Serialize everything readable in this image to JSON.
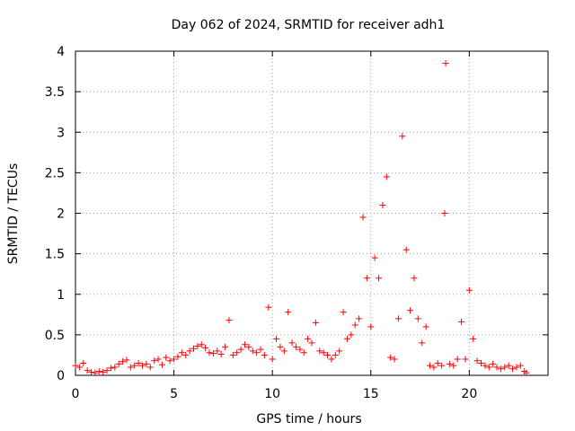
{
  "chart_data": {
    "type": "scatter",
    "title": "Day 062 of 2024, SRMTID for receiver adh1",
    "xlabel": "GPS time / hours",
    "ylabel": "SRMTID / TECUs",
    "xlim": [
      0,
      24
    ],
    "ylim": [
      0,
      4
    ],
    "xticks": [
      0,
      5,
      10,
      15,
      20
    ],
    "xtick_labels": [
      "0",
      "5",
      "10",
      "15",
      "20"
    ],
    "yticks": [
      0,
      0.5,
      1,
      1.5,
      2,
      2.5,
      3,
      3.5,
      4
    ],
    "ytick_labels": [
      "0",
      "0.5",
      "1",
      "1.5",
      "2",
      "2.5",
      "3",
      "3.5",
      "4"
    ],
    "grid": true,
    "marker": "plus",
    "series": [
      {
        "name": "SRMTID",
        "color": "#ff0000",
        "points": [
          [
            0.0,
            0.12
          ],
          [
            0.2,
            0.1
          ],
          [
            0.4,
            0.15
          ],
          [
            0.6,
            0.06
          ],
          [
            0.8,
            0.04
          ],
          [
            1.0,
            0.03
          ],
          [
            1.2,
            0.05
          ],
          [
            1.4,
            0.04
          ],
          [
            1.6,
            0.06
          ],
          [
            1.8,
            0.09
          ],
          [
            2.0,
            0.1
          ],
          [
            2.2,
            0.14
          ],
          [
            2.4,
            0.17
          ],
          [
            2.6,
            0.19
          ],
          [
            2.8,
            0.1
          ],
          [
            3.0,
            0.12
          ],
          [
            3.2,
            0.15
          ],
          [
            3.4,
            0.12
          ],
          [
            3.6,
            0.14
          ],
          [
            3.8,
            0.1
          ],
          [
            4.0,
            0.18
          ],
          [
            4.2,
            0.2
          ],
          [
            4.4,
            0.13
          ],
          [
            4.6,
            0.22
          ],
          [
            4.8,
            0.18
          ],
          [
            5.0,
            0.2
          ],
          [
            5.2,
            0.23
          ],
          [
            5.4,
            0.28
          ],
          [
            5.6,
            0.25
          ],
          [
            5.8,
            0.3
          ],
          [
            6.0,
            0.33
          ],
          [
            6.2,
            0.36
          ],
          [
            6.4,
            0.38
          ],
          [
            6.6,
            0.34
          ],
          [
            6.8,
            0.28
          ],
          [
            7.0,
            0.27
          ],
          [
            7.2,
            0.3
          ],
          [
            7.4,
            0.26
          ],
          [
            7.6,
            0.35
          ],
          [
            7.8,
            0.68
          ],
          [
            8.0,
            0.25
          ],
          [
            8.2,
            0.28
          ],
          [
            8.4,
            0.32
          ],
          [
            8.6,
            0.38
          ],
          [
            8.8,
            0.35
          ],
          [
            9.0,
            0.3
          ],
          [
            9.2,
            0.28
          ],
          [
            9.4,
            0.32
          ],
          [
            9.6,
            0.25
          ],
          [
            9.8,
            0.84
          ],
          [
            10.0,
            0.2
          ],
          [
            10.2,
            0.45
          ],
          [
            10.4,
            0.35
          ],
          [
            10.6,
            0.3
          ],
          [
            10.8,
            0.78
          ],
          [
            11.0,
            0.4
          ],
          [
            11.2,
            0.35
          ],
          [
            11.4,
            0.32
          ],
          [
            11.6,
            0.28
          ],
          [
            11.8,
            0.45
          ],
          [
            12.0,
            0.4
          ],
          [
            12.2,
            0.65
          ],
          [
            12.4,
            0.3
          ],
          [
            12.6,
            0.28
          ],
          [
            12.8,
            0.25
          ],
          [
            13.0,
            0.2
          ],
          [
            13.2,
            0.25
          ],
          [
            13.4,
            0.3
          ],
          [
            13.6,
            0.78
          ],
          [
            13.8,
            0.45
          ],
          [
            14.0,
            0.5
          ],
          [
            14.2,
            0.62
          ],
          [
            14.4,
            0.7
          ],
          [
            14.6,
            1.95
          ],
          [
            14.8,
            1.2
          ],
          [
            15.0,
            0.6
          ],
          [
            15.2,
            1.45
          ],
          [
            15.4,
            1.2
          ],
          [
            15.6,
            2.1
          ],
          [
            15.8,
            2.45
          ],
          [
            16.0,
            0.22
          ],
          [
            16.2,
            0.2
          ],
          [
            16.4,
            0.7
          ],
          [
            16.6,
            2.95
          ],
          [
            16.8,
            1.55
          ],
          [
            17.0,
            0.8
          ],
          [
            17.2,
            1.2
          ],
          [
            17.4,
            0.7
          ],
          [
            17.6,
            0.4
          ],
          [
            17.8,
            0.6
          ],
          [
            18.0,
            0.12
          ],
          [
            18.2,
            0.1
          ],
          [
            18.4,
            0.15
          ],
          [
            18.6,
            0.12
          ],
          [
            18.75,
            2.0
          ],
          [
            18.8,
            3.85
          ],
          [
            19.0,
            0.14
          ],
          [
            19.2,
            0.12
          ],
          [
            19.4,
            0.2
          ],
          [
            19.6,
            0.66
          ],
          [
            19.8,
            0.2
          ],
          [
            20.0,
            1.05
          ],
          [
            20.2,
            0.45
          ],
          [
            20.4,
            0.18
          ],
          [
            20.6,
            0.15
          ],
          [
            20.8,
            0.12
          ],
          [
            21.0,
            0.1
          ],
          [
            21.2,
            0.14
          ],
          [
            21.4,
            0.1
          ],
          [
            21.6,
            0.08
          ],
          [
            21.8,
            0.1
          ],
          [
            22.0,
            0.12
          ],
          [
            22.2,
            0.08
          ],
          [
            22.4,
            0.1
          ],
          [
            22.6,
            0.12
          ],
          [
            22.8,
            0.05
          ],
          [
            22.9,
            0.03
          ]
        ]
      }
    ]
  }
}
